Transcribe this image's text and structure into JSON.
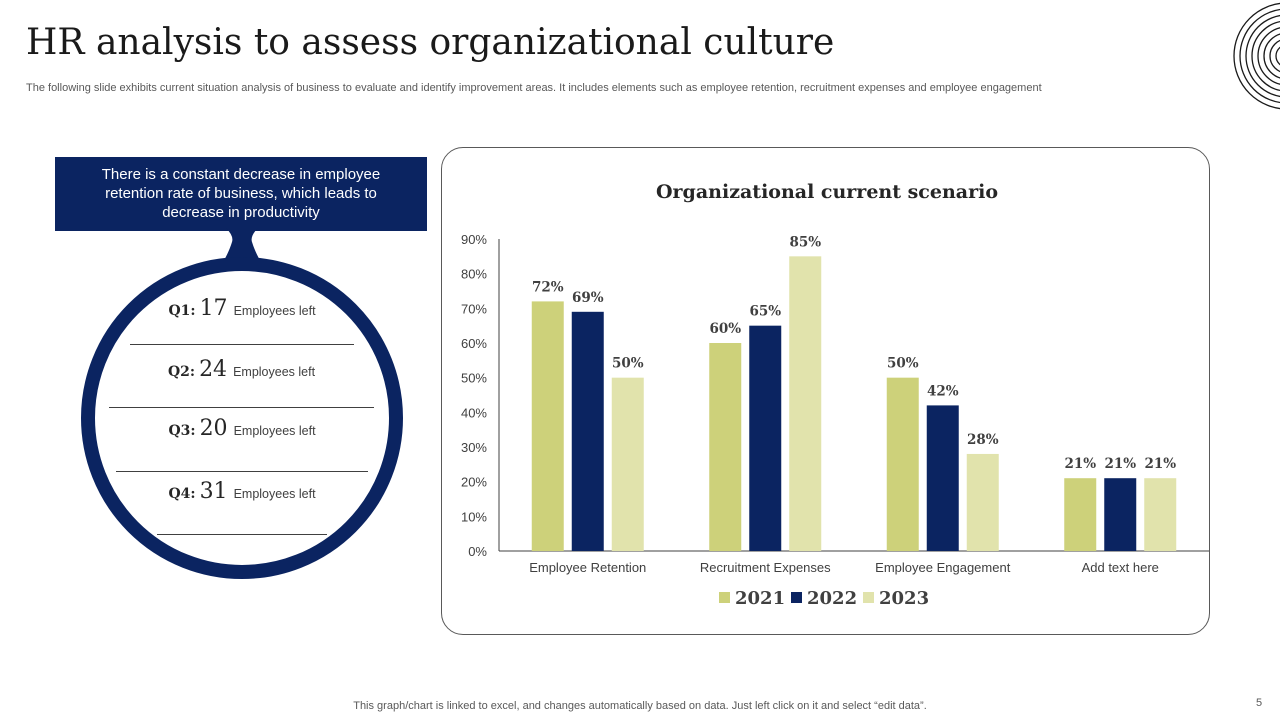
{
  "slide": {
    "title": "HR analysis to assess organizational culture",
    "subtitle": "The following slide exhibits current situation analysis of business to evaluate and identify improvement areas. It includes elements such as employee retention, recruitment expenses and employee engagement",
    "footnote": "This graph/chart is linked to excel,  and changes automatically based on data. Just left click on it and select “edit data”.",
    "page_number": "5"
  },
  "callout": {
    "text": "There is a constant decrease in employee retention rate of business, which leads to decrease in productivity"
  },
  "quarters": [
    {
      "label": "Q1:",
      "value": "17",
      "text": "Employees left"
    },
    {
      "label": "Q2:",
      "value": "24",
      "text": "Employees left"
    },
    {
      "label": "Q3:",
      "value": "20",
      "text": "Employees left"
    },
    {
      "label": "Q4:",
      "value": "31",
      "text": "Employees left"
    }
  ],
  "colors": {
    "navy": "#0b2461",
    "series_2021": "#cdd17a",
    "series_2022": "#0b2461",
    "series_2023": "#e1e3ac"
  },
  "chart_data": {
    "type": "bar",
    "title": "Organizational current scenario",
    "categories": [
      "Employee Retention",
      "Recruitment Expenses",
      "Employee Engagement",
      "Add text here"
    ],
    "series": [
      {
        "name": "2021",
        "values": [
          72,
          60,
          50,
          21
        ],
        "color": "#cdd17a"
      },
      {
        "name": "2022",
        "values": [
          69,
          65,
          42,
          21
        ],
        "color": "#0b2461"
      },
      {
        "name": "2023",
        "values": [
          50,
          85,
          28,
          21
        ],
        "color": "#e1e3ac"
      }
    ],
    "ylim": [
      0,
      90
    ],
    "yticks": [
      0,
      10,
      20,
      30,
      40,
      50,
      60,
      70,
      80,
      90
    ],
    "tick_suffix": "%",
    "data_label_suffix": "%",
    "xlabel": "",
    "ylabel": "",
    "grid": false,
    "legend_position": "bottom"
  }
}
